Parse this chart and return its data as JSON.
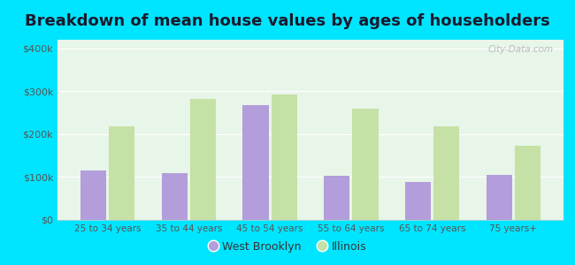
{
  "title": "Breakdown of mean house values by ages of householders",
  "categories": [
    "25 to 34 years",
    "35 to 44 years",
    "45 to 54 years",
    "55 to 64 years",
    "65 to 74 years",
    "75 years+"
  ],
  "west_brooklyn": [
    115000,
    110000,
    268000,
    103000,
    88000,
    104000
  ],
  "illinois": [
    218000,
    283000,
    293000,
    260000,
    218000,
    173000
  ],
  "west_brooklyn_color": "#b39ddb",
  "illinois_color": "#c5e1a5",
  "background_outer": "#00e5ff",
  "background_inner_top": "#e8f5e9",
  "background_inner_bottom": "#c8e6c9",
  "ylabel_ticks": [
    "$0",
    "$100k",
    "$200k",
    "$300k",
    "$400k"
  ],
  "ytick_values": [
    0,
    100000,
    200000,
    300000,
    400000
  ],
  "ylim": [
    0,
    420000
  ],
  "legend_labels": [
    "West Brooklyn",
    "Illinois"
  ],
  "title_fontsize": 13,
  "watermark": "City-Data.com"
}
